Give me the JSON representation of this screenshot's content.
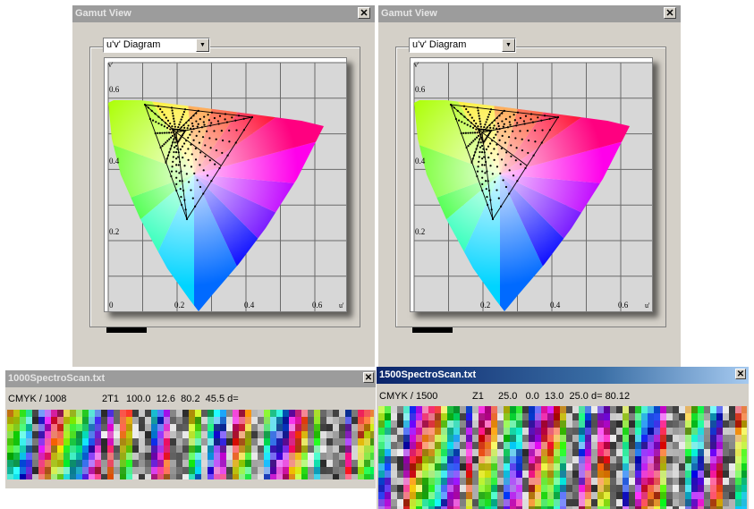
{
  "gamut_windows": [
    {
      "title": "Gamut View",
      "diagram_select": "u'v' Diagram",
      "axis_v": "v'",
      "axis_u": "u'",
      "ticks_y": [
        "0.6",
        "0.4",
        "0.2"
      ],
      "ticks_x": [
        "0",
        "0.2",
        "0.4",
        "0.6"
      ]
    },
    {
      "title": "Gamut View",
      "diagram_select": "u'v' Diagram",
      "axis_v": "v'",
      "axis_u": "u'",
      "ticks_y": [
        "0.6",
        "0.4",
        "0.2"
      ],
      "ticks_x": [
        "0.2",
        "0.4",
        "0.6"
      ]
    }
  ],
  "scan_windows": [
    {
      "title": "1000SpectroScan.txt",
      "mode": "CMYK / 1008",
      "patch_id": "2T1",
      "values": "100.0  12.6  80.2  45.5 d="
    },
    {
      "title": "1500SpectroScan.txt",
      "mode": "CMYK / 1500",
      "patch_id": "Z1",
      "values": "25.0   0.0  13.0  25.0 d= 80.12"
    }
  ],
  "icons": {
    "close": "close-icon",
    "dropdown": "chevron-down-icon"
  },
  "colors": {
    "title_active": "#0a246a",
    "title_inactive": "#9c9c9c",
    "window_face": "#d4d0c8"
  }
}
